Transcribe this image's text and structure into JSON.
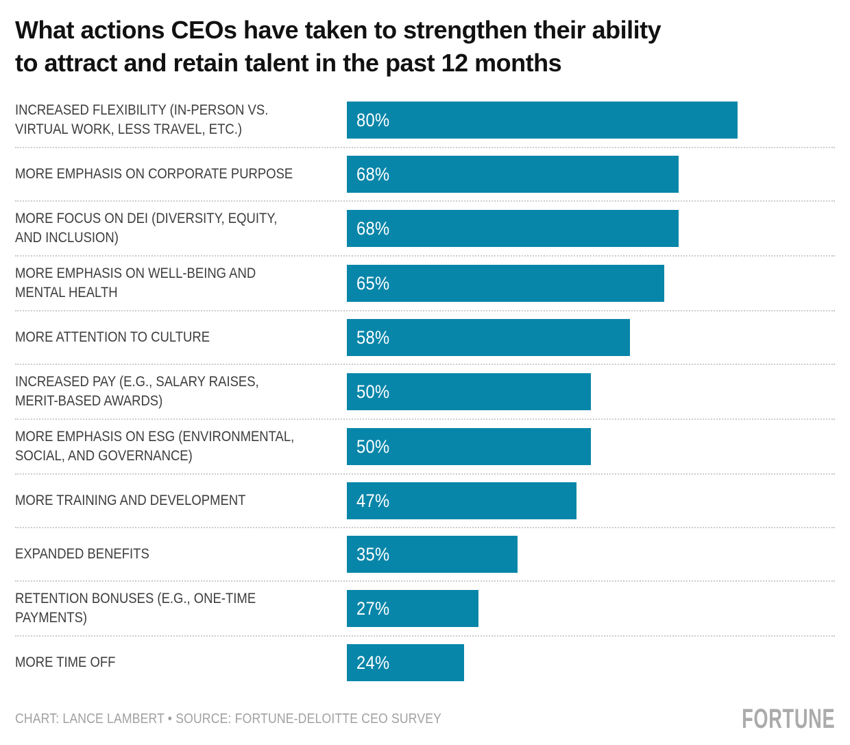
{
  "title": "What actions CEOs have taken to strengthen their ability\nto attract and retain talent in the past 12 months",
  "footer": {
    "credit": "CHART: LANCE LAMBERT • SOURCE: FORTUNE-DELOITTE CEO SURVEY",
    "logo": "FORTUNE"
  },
  "colors": {
    "bar": "#0886a9",
    "title_text": "#111111",
    "label_text": "#3d3d3d",
    "value_text": "#ffffff",
    "separator": "#cbcbcb",
    "footer_text": "#a1a1a1",
    "logo_text": "#ababab",
    "background": "#ffffff"
  },
  "chart_data": {
    "type": "bar",
    "orientation": "horizontal",
    "title": "What actions CEOs have taken to strengthen their ability to attract and retain talent in the past 12 months",
    "categories": [
      "INCREASED FLEXIBILITY (IN-PERSON VS.\nVIRTUAL WORK, LESS TRAVEL, ETC.)",
      "MORE EMPHASIS ON CORPORATE PURPOSE",
      "MORE FOCUS ON DEI (DIVERSITY, EQUITY,\nAND INCLUSION)",
      "MORE EMPHASIS ON WELL-BEING AND\nMENTAL HEALTH",
      "MORE ATTENTION TO CULTURE",
      "INCREASED PAY (E.G., SALARY RAISES,\nMERIT-BASED AWARDS)",
      "MORE EMPHASIS ON ESG (ENVIRONMENTAL,\nSOCIAL, AND GOVERNANCE)",
      "MORE TRAINING AND DEVELOPMENT",
      "EXPANDED BENEFITS",
      "RETENTION BONUSES (E.G., ONE-TIME\nPAYMENTS)",
      "MORE TIME OFF"
    ],
    "values": [
      80,
      68,
      68,
      65,
      58,
      50,
      50,
      47,
      35,
      27,
      24
    ],
    "value_labels": [
      "80%",
      "68%",
      "68%",
      "65%",
      "58%",
      "50%",
      "50%",
      "47%",
      "35%",
      "27%",
      "24%"
    ],
    "unit": "%",
    "xlim": [
      0,
      100
    ],
    "xlabel": "",
    "ylabel": "",
    "grid": false,
    "legend": false,
    "value_label_position": "inside-left",
    "bar_color": "#0886a9"
  }
}
